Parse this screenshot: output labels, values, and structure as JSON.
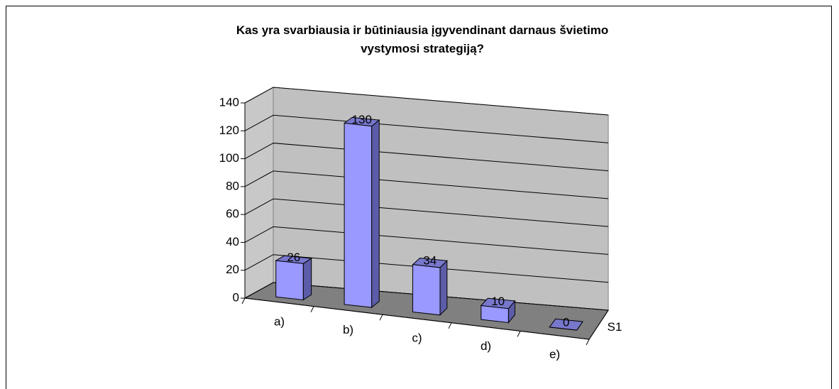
{
  "chart_data": {
    "type": "bar3d",
    "title": "Kas yra svarbiausia ir būtiniausia įgyvendinant darnaus švietimo vystymosi strategiją?",
    "categories": [
      "a)",
      "b)",
      "c)",
      "d)",
      "e)"
    ],
    "series": [
      {
        "name": "S1",
        "color": "#9999ff",
        "values": [
          26,
          130,
          34,
          10,
          0
        ]
      }
    ],
    "ylim": [
      0,
      140
    ],
    "yticks": [
      0,
      20,
      40,
      60,
      80,
      100,
      120,
      140
    ],
    "grid": true
  }
}
